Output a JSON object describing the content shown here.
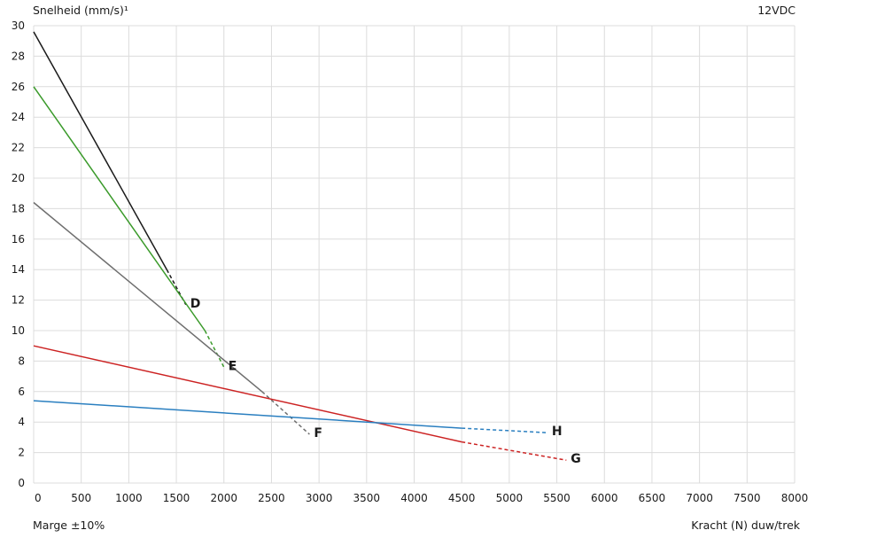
{
  "chart_data": {
    "type": "line",
    "ylabel": "Snelheid (mm/s)¹",
    "xlabel": "Kracht (N) duw/trek",
    "voltage": "12VDC",
    "margin_note": "Marge ±10%",
    "xlim": [
      0,
      8000
    ],
    "ylim": [
      0,
      30
    ],
    "x_ticks": [
      0,
      500,
      1000,
      1500,
      2000,
      2500,
      3000,
      3500,
      4000,
      4500,
      5000,
      5500,
      6000,
      6500,
      7000,
      7500,
      8000
    ],
    "y_ticks": [
      0,
      2,
      4,
      6,
      8,
      10,
      12,
      14,
      16,
      18,
      20,
      22,
      24,
      26,
      28,
      30
    ],
    "grid": true,
    "series": [
      {
        "label": "D",
        "color": "#1a1a1a",
        "solid": [
          [
            0,
            29.6
          ],
          [
            1400,
            14.0
          ]
        ],
        "dashed": [
          [
            1400,
            14.0
          ],
          [
            1600,
            11.7
          ]
        ]
      },
      {
        "label": "E",
        "color": "#3a9a2a",
        "solid": [
          [
            0,
            26.0
          ],
          [
            1800,
            10.0
          ]
        ],
        "dashed": [
          [
            1800,
            10.0
          ],
          [
            2000,
            7.6
          ]
        ]
      },
      {
        "label": "F",
        "color": "#6e6e6e",
        "solid": [
          [
            0,
            18.4
          ],
          [
            2400,
            6.0
          ]
        ],
        "dashed": [
          [
            2400,
            6.0
          ],
          [
            2900,
            3.2
          ]
        ]
      },
      {
        "label": "G",
        "color": "#cc2222",
        "solid": [
          [
            0,
            9.0
          ],
          [
            4500,
            2.7
          ]
        ],
        "dashed": [
          [
            4500,
            2.7
          ],
          [
            5600,
            1.5
          ]
        ]
      },
      {
        "label": "H",
        "color": "#2a7fc0",
        "solid": [
          [
            0,
            5.4
          ],
          [
            4500,
            3.6
          ]
        ],
        "dashed": [
          [
            4500,
            3.6
          ],
          [
            5400,
            3.3
          ]
        ]
      }
    ]
  }
}
